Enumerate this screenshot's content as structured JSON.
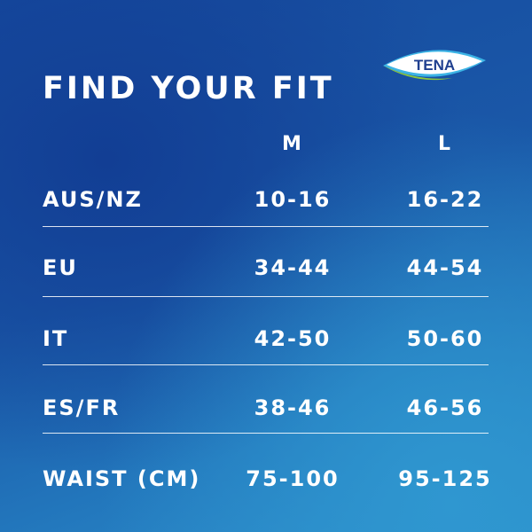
{
  "title": "FIND YOUR FIT",
  "logo": {
    "text": "TENA",
    "colors": {
      "white": "#ffffff",
      "blue": "#1f3f8f",
      "green": "#8cc63f",
      "cyan": "#3cb4e5"
    }
  },
  "columns": [
    "M",
    "L"
  ],
  "rows": [
    {
      "label": "AUS/NZ",
      "m": "10-16",
      "l": "16-22"
    },
    {
      "label": "EU",
      "m": "34-44",
      "l": "44-54"
    },
    {
      "label": "IT",
      "m": "42-50",
      "l": "50-60"
    },
    {
      "label": "ES/FR",
      "m": "38-46",
      "l": "46-56"
    },
    {
      "label": "WAIST (CM)",
      "m": "75-100",
      "l": "95-125"
    }
  ]
}
